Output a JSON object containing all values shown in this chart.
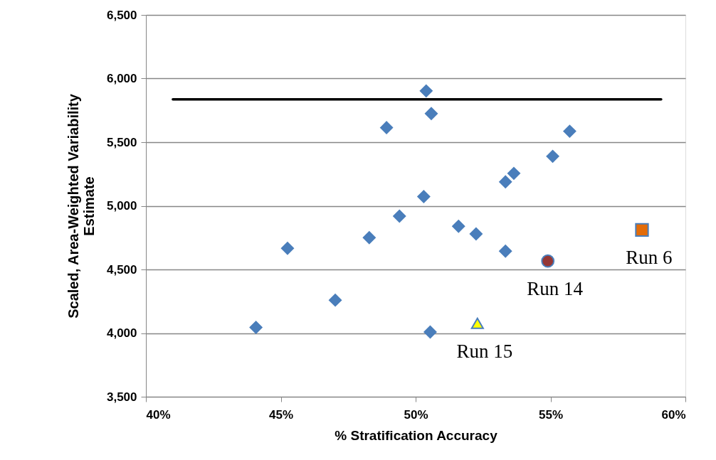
{
  "chart_data": {
    "type": "scatter",
    "xlabel": "% Stratification Accuracy",
    "ylabel": "Scaled, Area-Weighted Variability Estimate",
    "xlim": [
      40,
      60
    ],
    "xticks": [
      {
        "value": 40,
        "label": "40%"
      },
      {
        "value": 45,
        "label": "45%"
      },
      {
        "value": 50,
        "label": "50%"
      },
      {
        "value": 55,
        "label": "55%"
      },
      {
        "value": 60,
        "label": "60%"
      }
    ],
    "ylim": [
      3500,
      6500
    ],
    "yticks": [
      {
        "value": 3500,
        "label": "3,500"
      },
      {
        "value": 4000,
        "label": "4,000"
      },
      {
        "value": 4500,
        "label": "4,500"
      },
      {
        "value": 5000,
        "label": "5,000"
      },
      {
        "value": 5500,
        "label": "5,500"
      },
      {
        "value": 6000,
        "label": "6,000"
      },
      {
        "value": 6500,
        "label": "6,500"
      }
    ],
    "grid": "y",
    "legend": false,
    "series": [
      {
        "type": "line",
        "color": "#000000",
        "marker": "none",
        "line_style": "solid",
        "x": [
          41.0,
          59.1
        ],
        "values": [
          5837,
          5837
        ]
      },
      {
        "color": "#4a7ebb",
        "marker": "diamond",
        "x": [
          44.08,
          45.25,
          47.02,
          48.28,
          48.92,
          49.4,
          50.39,
          50.58,
          50.3,
          51.59,
          52.24,
          53.33,
          53.33,
          53.64,
          55.08,
          55.71,
          50.54
        ],
        "values": [
          4045,
          4666,
          4259,
          4750,
          5614,
          4919,
          5903,
          5725,
          5073,
          4839,
          4779,
          4644,
          5188,
          5255,
          5389,
          5586,
          4008
        ]
      },
      {
        "name": "Run 15",
        "color": "#ffff00",
        "marker": "triangle",
        "x": [
          52.29
        ],
        "values": [
          4077
        ]
      },
      {
        "name": "Run 14",
        "color": "#953735",
        "marker": "circle",
        "x": [
          54.9
        ],
        "values": [
          4566
        ]
      },
      {
        "name": "Run 6",
        "color": "#e36c09",
        "marker": "square",
        "x": [
          58.39
        ],
        "values": [
          4811
        ]
      }
    ]
  }
}
